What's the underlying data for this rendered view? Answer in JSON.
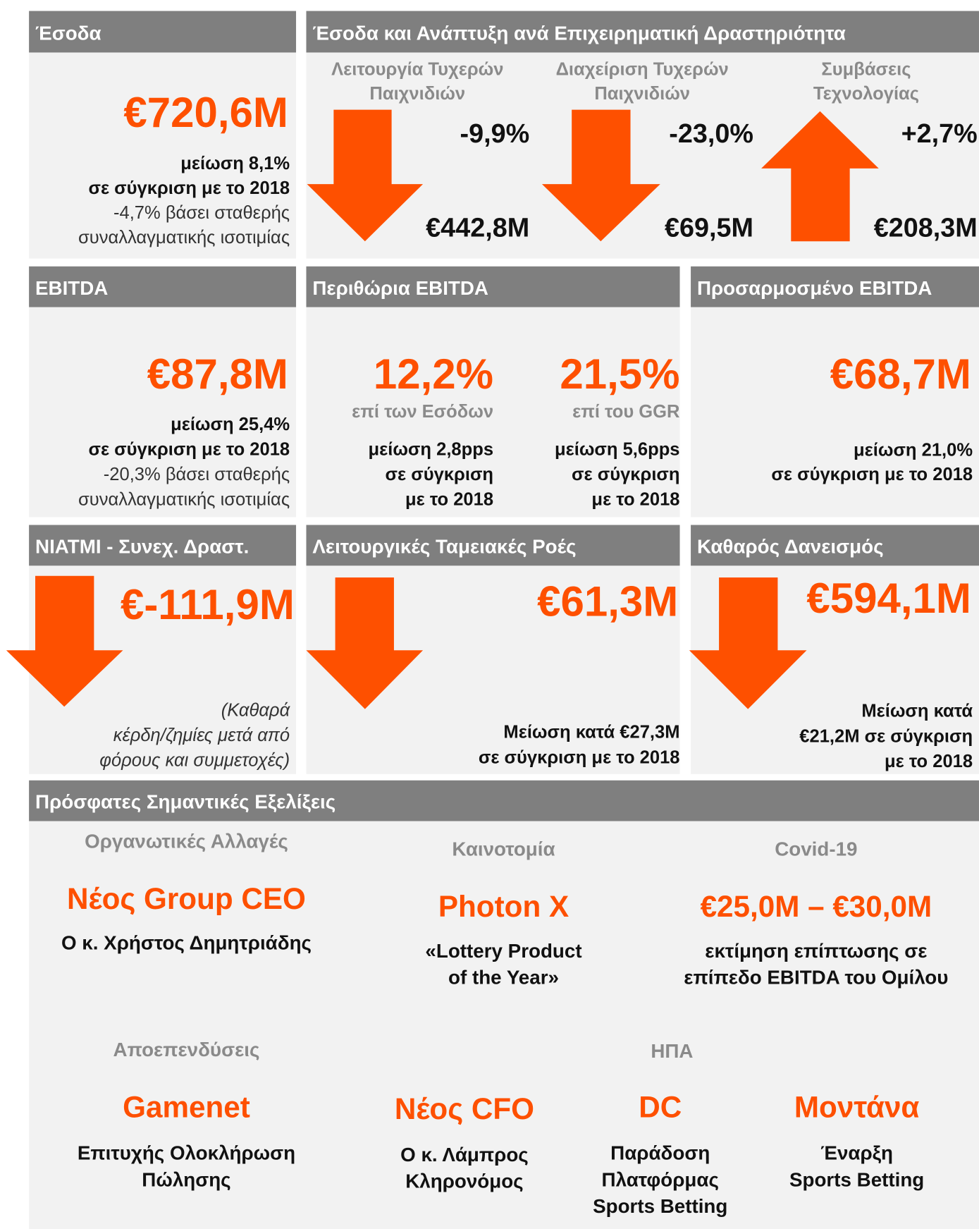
{
  "revenue": {
    "header": "Έσοδα",
    "value": "€720,6M",
    "lines": [
      "μείωση 8,1%",
      "σε σύγκριση με το 2018",
      "-4,7% βάσει σταθερής",
      "συναλλαγματικής ισοτιμίας"
    ]
  },
  "revenue_by_activity": {
    "header": "Έσοδα και Ανάπτυξη ανά Επιχειρηματική Δραστηριότητα",
    "segments": [
      {
        "name_lines": [
          "Λειτουργία Τυχερών",
          "Παιχνιδιών"
        ],
        "change": "-9,9%",
        "value": "€442,8M"
      },
      {
        "name_lines": [
          "Διαχείριση Τυχερών",
          "Παιχνιδιών"
        ],
        "change": "-23,0%",
        "value": "€69,5M"
      },
      {
        "name_lines": [
          "Συμβάσεις",
          "Τεχνολογίας"
        ],
        "change": "+2,7%",
        "value": "€208,3M"
      }
    ]
  },
  "ebitda": {
    "header": "EBITDA",
    "value": "€87,8M",
    "lines": [
      "μείωση 25,4%",
      "σε σύγκριση με το 2018",
      "-20,3% βάσει σταθερής",
      "συναλλαγματικής ισοτιμίας"
    ]
  },
  "ebitda_margins": {
    "header": "Περιθώρια EBITDA",
    "margins": [
      {
        "value": "12,2%",
        "basis": "επί των Εσόδων",
        "lines": [
          "μείωση 2,8pps",
          "σε σύγκριση",
          "με το 2018"
        ]
      },
      {
        "value": "21,5%",
        "basis": "επί του GGR",
        "lines": [
          "μείωση 5,6pps",
          "σε σύγκριση",
          "με το 2018"
        ]
      }
    ]
  },
  "adjusted_ebitda": {
    "header": "Προσαρμοσμένο EBITDA",
    "value": "€68,7M",
    "lines": [
      "μείωση 21,0%",
      "σε σύγκριση με το 2018"
    ]
  },
  "niatmi": {
    "header": "NIATMI - Συνεχ. Δραστ.",
    "value": "€-111,9M",
    "lines": [
      "(Καθαρά",
      "κέρδη/ζημίες μετά από",
      "φόρους και συμμετοχές)"
    ]
  },
  "operating_cash_flow": {
    "header": "Λειτουργικές Ταμειακές Ροές",
    "value": "€61,3M",
    "lines": [
      "Μείωση κατά €27,3M",
      "σε σύγκριση με το 2018"
    ]
  },
  "net_debt": {
    "header": "Καθαρός Δανεισμός",
    "value": "€594,1M",
    "lines": [
      "Μείωση κατά",
      "€21,2M σε σύγκριση",
      "με το 2018"
    ]
  },
  "developments": {
    "header": "Πρόσφατες Σημαντικές Εξελίξεις",
    "group_label": "ΗΠΑ",
    "items": [
      {
        "category": "Οργανωτικές Αλλαγές",
        "title": "Νέος Group CEO",
        "lines": [
          "Ο κ. Χρήστος Δημητριάδης"
        ]
      },
      {
        "category": "Καινοτομία",
        "title": "Photon X",
        "lines": [
          "«Lottery Product",
          "of the Year»"
        ]
      },
      {
        "category": "Covid-19",
        "title": "€25,0M – €30,0M",
        "lines": [
          "εκτίμηση επίπτωσης σε",
          "επίπεδο EBITDA του Ομίλου"
        ]
      },
      {
        "category": "Αποεπενδύσεις",
        "title": "Gamenet",
        "lines": [
          "Επιτυχής Ολοκλήρωση",
          "Πώλησης"
        ]
      },
      {
        "title": "Νέος CFO",
        "lines": [
          "Ο κ. Λάμπρος",
          "Κληρονόμος"
        ]
      },
      {
        "title": "DC",
        "lines": [
          "Παράδοση",
          "Πλατφόρμας",
          "Sports Betting"
        ]
      },
      {
        "title": "Μοντάνα",
        "lines": [
          "Έναρξη",
          "Sports Betting"
        ]
      }
    ]
  }
}
